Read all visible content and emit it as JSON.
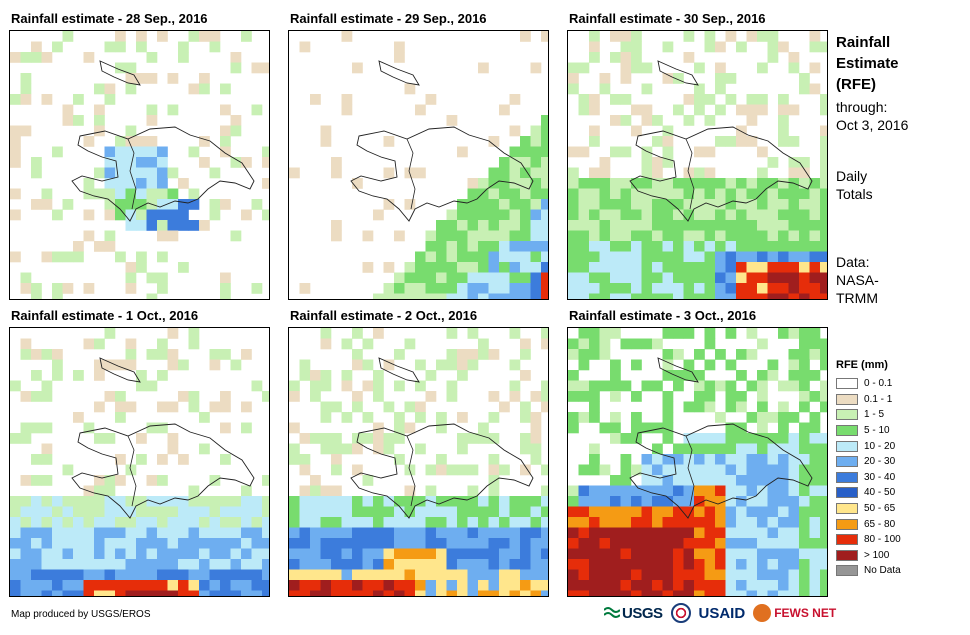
{
  "panels": [
    {
      "title": "Rainfall estimate - 28 Sep., 2016"
    },
    {
      "title": "Rainfall estimate - 29 Sep., 2016"
    },
    {
      "title": "Rainfall estimate - 30 Sep., 2016"
    },
    {
      "title": "Rainfall estimate - 1 Oct., 2016"
    },
    {
      "title": "Rainfall estimate - 2 Oct., 2016"
    },
    {
      "title": "Rainfall estimate - 3 Oct., 2016"
    }
  ],
  "sidebar": {
    "title_lines": [
      "Rainfall",
      "Estimate",
      "(RFE)"
    ],
    "through_label": "through:",
    "through_date": "Oct 3, 2016",
    "daily_lines": [
      "Daily",
      "Totals"
    ],
    "data_lines": [
      "Data:",
      "NASA-",
      "TRMM"
    ]
  },
  "legend": {
    "title": "RFE (mm)",
    "items": [
      {
        "label": "0 - 0.1",
        "color": "#ffffff"
      },
      {
        "label": "0.1 - 1",
        "color": "#ecdcc2"
      },
      {
        "label": "1 - 5",
        "color": "#c8f0b4"
      },
      {
        "label": "5 - 10",
        "color": "#78dc6e"
      },
      {
        "label": "10 - 20",
        "color": "#bceaf8"
      },
      {
        "label": "20 - 30",
        "color": "#6eaef0"
      },
      {
        "label": "30 - 40",
        "color": "#3c7cdc"
      },
      {
        "label": "40 - 50",
        "color": "#285fc8"
      },
      {
        "label": "50 - 65",
        "color": "#ffe68c"
      },
      {
        "label": "65 - 80",
        "color": "#f59b14"
      },
      {
        "label": "80 - 100",
        "color": "#e62d0a"
      },
      {
        "label": "> 100",
        "color": "#a01e1e"
      },
      {
        "label": "No Data",
        "color": "#969696"
      }
    ]
  },
  "footer": {
    "credit": "Map produced by USGS/EROS",
    "logos": [
      "USGS",
      "USAID",
      "FEWS NET"
    ]
  }
}
